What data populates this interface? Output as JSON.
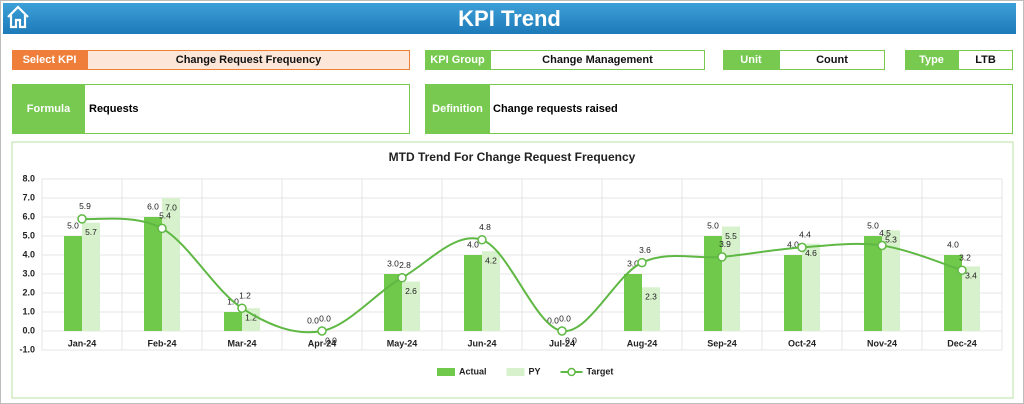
{
  "header": {
    "title": "KPI Trend"
  },
  "filters": [
    {
      "label": "Select KPI",
      "value": "Change Request Frequency"
    },
    {
      "label": "KPI Group",
      "value": "Change Management"
    },
    {
      "label": "Unit",
      "value": "Count"
    },
    {
      "label": "Type",
      "value": "LTB"
    }
  ],
  "details": [
    {
      "label": "Formula",
      "value": "Requests"
    },
    {
      "label": "Definition",
      "value": "Change requests raised"
    }
  ],
  "chart_data": {
    "type": "bar-line",
    "title": "MTD Trend For Change Request Frequency",
    "categories": [
      "Jan-24",
      "Feb-24",
      "Mar-24",
      "Apr-24",
      "May-24",
      "Jun-24",
      "Jul-24",
      "Aug-24",
      "Sep-24",
      "Oct-24",
      "Nov-24",
      "Dec-24"
    ],
    "series": [
      {
        "name": "Actual",
        "type": "bar",
        "color": "#70c94a",
        "values": [
          5,
          6,
          1,
          0,
          3,
          4,
          0,
          3,
          5,
          4,
          5,
          4
        ],
        "value_labels": [
          "5.0",
          "6.0",
          "1.0",
          "0.0",
          "3.0",
          "4.0",
          "0.0",
          "3.0",
          "5.0",
          "4.0",
          "5.0",
          "4.0"
        ]
      },
      {
        "name": "PY",
        "type": "bar",
        "color": "#d7f1cc",
        "values": [
          5.7,
          7,
          1.2,
          0,
          2.6,
          4.2,
          0,
          2.3,
          5.5,
          4.6,
          5.3,
          3.4
        ],
        "value_labels": [
          "5.7",
          "7.0",
          "1.2",
          "0.0",
          "2.6",
          "4.2",
          "0.0",
          "2.3",
          "5.5",
          "4.6",
          "5.3",
          "3.4"
        ]
      },
      {
        "name": "Target",
        "type": "line",
        "color": "#5fb844",
        "values": [
          5.9,
          5.4,
          1.2,
          0,
          2.8,
          4.8,
          0,
          3.6,
          3.9,
          4.4,
          4.5,
          3.2
        ],
        "value_labels": [
          "5.9",
          "5.4",
          "1.2",
          "0.0",
          "2.8",
          "4.8",
          "0.0",
          "3.6",
          "3.9",
          "4.4",
          "4.5",
          "3.2"
        ]
      }
    ],
    "ylim": [
      -1,
      8
    ],
    "yticks": [
      {
        "value": -1,
        "label": "-1.0"
      },
      {
        "value": 0,
        "label": "0.0"
      },
      {
        "value": 1,
        "label": "1.0"
      },
      {
        "value": 2,
        "label": "2.0"
      },
      {
        "value": 3,
        "label": "3.0"
      },
      {
        "value": 4,
        "label": "4.0"
      },
      {
        "value": 5,
        "label": "5.0"
      },
      {
        "value": 6,
        "label": "6.0"
      },
      {
        "value": 7,
        "label": "7.0"
      },
      {
        "value": 8,
        "label": "8.0"
      }
    ],
    "grid": true,
    "legend": "bottom"
  }
}
